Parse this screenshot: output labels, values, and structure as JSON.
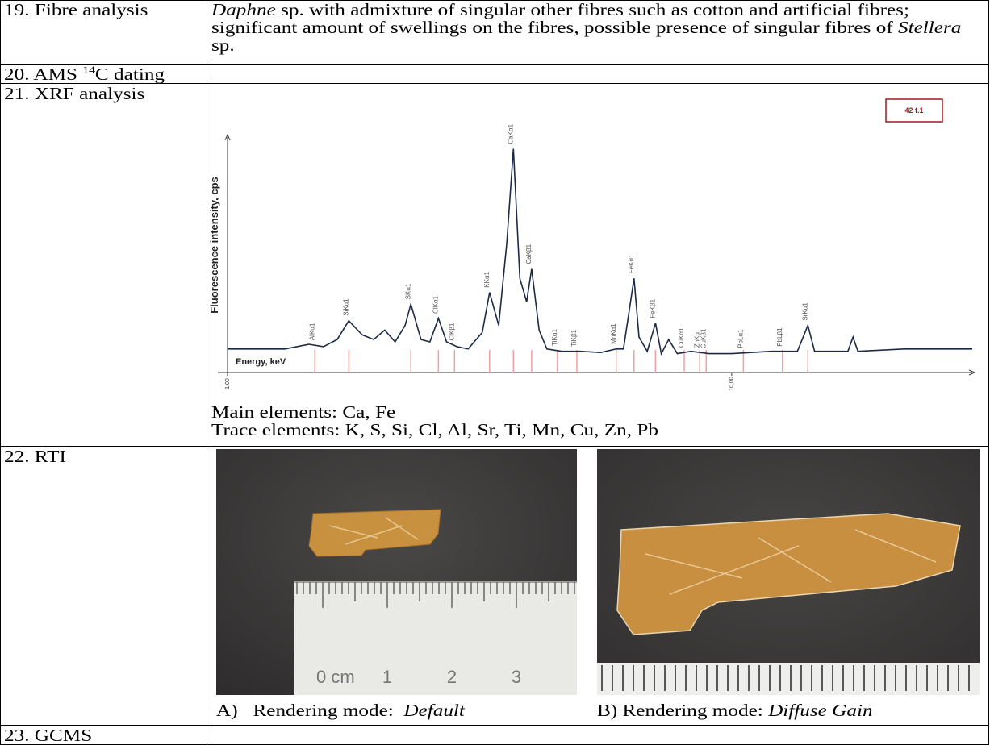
{
  "table": {
    "rows": [
      {
        "label": "19. Fibre analysis",
        "content": [
          "Daphne",
          " sp. with admixture of singular other fibres such as cotton and artificial fibres; significant amount of swellings on the fibres, possible presence of singular fibres of ",
          "Stellera",
          " sp."
        ]
      },
      {
        "label": [
          "20. AMS ",
          "14",
          "C dating"
        ]
      },
      {
        "label": "21. XRF analysis",
        "chart_data": {
          "type": "line",
          "y_label": "Fluorescence intensity, cps",
          "x_label": "Energy, keV",
          "annotation": "42 f.1",
          "log_x": true,
          "color": "#1c2a47",
          "peak_color": "#f0a0a0",
          "xlim": [
            1,
            30
          ],
          "ylim": [
            0,
            100
          ],
          "xticks": [
            {
              "value": 1,
              "label": "1,00"
            },
            {
              "value": 10,
              "label": "10,00"
            }
          ],
          "x": [
            1.0,
            1.3,
            1.45,
            1.55,
            1.65,
            1.74,
            1.85,
            1.95,
            2.05,
            2.15,
            2.25,
            2.31,
            2.42,
            2.52,
            2.62,
            2.72,
            2.85,
            3.0,
            3.2,
            3.31,
            3.45,
            3.58,
            3.69,
            3.8,
            3.92,
            4.01,
            4.15,
            4.3,
            4.6,
            5.0,
            5.5,
            5.9,
            6.1,
            6.25,
            6.4,
            6.55,
            6.8,
            7.06,
            7.25,
            7.5,
            7.8,
            8.3,
            9.0,
            10.0,
            12.0,
            13.5,
            14.16,
            14.6,
            17.0,
            17.4,
            17.8,
            22.0,
            30.0
          ],
          "values": [
            10,
            10,
            12,
            11,
            14,
            22,
            16,
            14,
            18,
            13,
            20,
            29,
            14,
            13,
            23,
            13,
            11,
            10,
            17,
            34,
            20,
            55,
            95,
            40,
            30,
            44,
            18,
            10,
            9,
            9,
            8.5,
            10,
            10,
            25,
            40,
            15,
            9,
            21,
            8,
            14,
            8,
            9,
            8,
            8,
            9,
            9,
            20,
            9,
            9,
            15,
            9,
            10,
            10
          ],
          "peaks": [
            {
              "label": "AlKα1",
              "energy": 1.49
            },
            {
              "label": "SiKα1",
              "energy": 1.74
            },
            {
              "label": "SKα1",
              "energy": 2.31
            },
            {
              "label": "ClKα1",
              "energy": 2.62
            },
            {
              "label": "ClKβ1",
              "energy": 2.82
            },
            {
              "label": "KKα1",
              "energy": 3.31
            },
            {
              "label": "CaKα1",
              "energy": 3.69
            },
            {
              "label": "CaKβ1",
              "energy": 4.01
            },
            {
              "label": "TiKα1",
              "energy": 4.51
            },
            {
              "label": "TiKβ1",
              "energy": 4.93
            },
            {
              "label": "MnKα1",
              "energy": 5.9
            },
            {
              "label": "FeKα1",
              "energy": 6.4
            },
            {
              "label": "FeKβ1",
              "energy": 7.06
            },
            {
              "label": "CuKα1",
              "energy": 8.05
            },
            {
              "label": "ZnKα",
              "energy": 8.64
            },
            {
              "label": "CuKβ1",
              "energy": 8.9
            },
            {
              "label": "PbLα1",
              "energy": 10.55
            },
            {
              "label": "PbLβ1",
              "energy": 12.61
            },
            {
              "label": "SrKα1",
              "energy": 14.16
            }
          ]
        },
        "notes": [
          "Main elements: Ca, Fe",
          "Trace elements: K, S, Si, Cl, Al, Sr, Ti, Mn, Cu, Zn, Pb"
        ]
      },
      {
        "label": "22. RTI",
        "images": [
          {
            "ruler_labels": [
              "0 cm",
              "1",
              "2",
              "3"
            ],
            "caption": [
              "A)   Rendering mode:  ",
              "Default"
            ]
          },
          {
            "caption": [
              "B) Rendering mode: ",
              "Diffuse Gain"
            ]
          }
        ]
      },
      {
        "label": "23. GCMS"
      }
    ]
  }
}
